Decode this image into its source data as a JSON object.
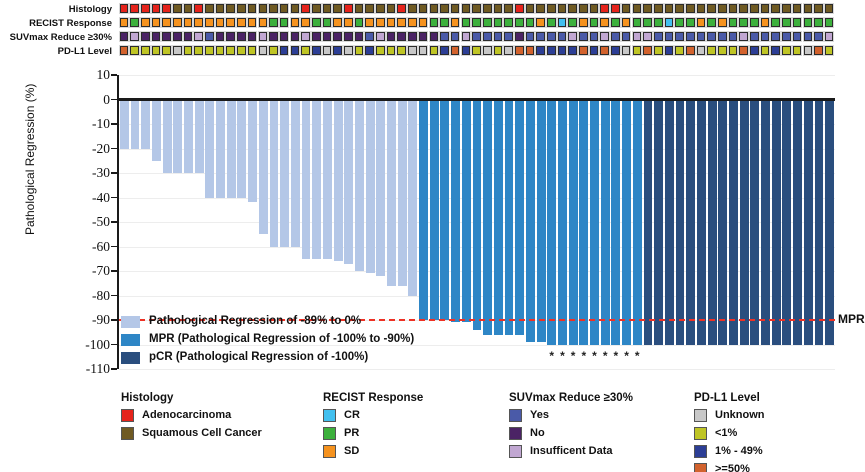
{
  "figure": {
    "mpr_reference_label": "MPR"
  },
  "tracks": {
    "rows": [
      {
        "label": "Histology",
        "codes": "AAAAASSASSSSSSSSSASSSASSSSASSSSSSSSSSASSSSSSSAASSSSSSSSSSSSSSSSSSSS",
        "palette": {
          "A": "#e5231b",
          "S": "#6f5a22"
        }
      },
      {
        "label": "RECIST Response",
        "codes": "SPSSSSSSSSSSSSPPSSPPSSPSSSSSSPPSPPPPPPPSPCPSPSPSPPPCPPSPSPPPSPPPPPP",
        "palette": {
          "C": "#42c0ef",
          "P": "#3cb03c",
          "S": "#f5921e"
        }
      },
      {
        "label": "SUVmax Reduce ≥30%",
        "codes": "NINNNNNIYNNNNINNNINNNNNYINNNNNYYIYYYYNYYYYIYYIYYIIYYYYYYYYIYYYYYYYI",
        "palette": {
          "Y": "#4a5aa8",
          "N": "#4b2365",
          "I": "#c1a7d2"
        }
      },
      {
        "label": "PD-L1 Level",
        "codes": "HLLLLULLLLLLLULMMLMUMULMLLLUULMHMLULUHHMMMMHMHMULHLMLHULLLHMLMLLUHL",
        "palette": {
          "U": "#c8c8c8",
          "L": "#bfc525",
          "M": "#2c3e95",
          "H": "#d2622d"
        }
      }
    ]
  },
  "chart_data": {
    "type": "bar",
    "title": "",
    "xlabel": "",
    "ylabel": "Pathological Regression (%)",
    "ylim": [
      -110,
      10
    ],
    "yticks": [
      10,
      0,
      -10,
      -20,
      -30,
      -40,
      -50,
      -60,
      -70,
      -80,
      -90,
      -100,
      -110
    ],
    "grid": "horizontal-light",
    "values": [
      -20,
      -20,
      -20,
      -25,
      -30,
      -30,
      -30,
      -30,
      -40,
      -40,
      -40,
      -40,
      -42,
      -55,
      -60,
      -60,
      -60,
      -65,
      -65,
      -65,
      -66,
      -67,
      -70,
      -71,
      -72,
      -76,
      -76,
      -80,
      -90,
      -90,
      -90,
      -91,
      -91,
      -94,
      -96,
      -96,
      -96,
      -96,
      -99,
      -99,
      -100,
      -100,
      -100,
      -100,
      -100,
      -100,
      -100,
      -100,
      -100,
      -100,
      -100,
      -100,
      -100,
      -100,
      -100,
      -100,
      -100,
      -100,
      -100,
      -100,
      -100,
      -100,
      -100,
      -100,
      -100,
      -100,
      -100
    ],
    "group_boundaries": {
      "light_last_bar": 28,
      "mpr_last_bar": 49
    },
    "group_colors": {
      "light": "#b4c7e7",
      "mpr": "#2e86c6",
      "pcr": "#2a4e7e"
    },
    "asterisk_bars": [
      41,
      42,
      43,
      44,
      45,
      46,
      47,
      48,
      49
    ],
    "asterisk_symbol": "*",
    "reference_line": {
      "y": -90,
      "label": "MPR",
      "color": "#ee3124",
      "style": "dashed"
    },
    "inner_legend": [
      {
        "key": "light",
        "label": "Pathological Regression of -89% to 0%"
      },
      {
        "key": "mpr",
        "label": "MPR (Pathological Regression of -100% to -90%)"
      },
      {
        "key": "pcr",
        "label": "pCR (Pathological Regression of -100%)"
      }
    ]
  },
  "legends": [
    {
      "title": "Histology",
      "items": [
        {
          "label": "Adenocarcinoma",
          "color": "#e5231b"
        },
        {
          "label": "Squamous Cell Cancer",
          "color": "#6f5a22"
        }
      ]
    },
    {
      "title": "RECIST Response",
      "items": [
        {
          "label": "CR",
          "color": "#42c0ef"
        },
        {
          "label": "PR",
          "color": "#3cb03c"
        },
        {
          "label": "SD",
          "color": "#f5921e"
        }
      ]
    },
    {
      "title": "SUVmax Reduce ≥30%",
      "items": [
        {
          "label": "Yes",
          "color": "#4a5aa8"
        },
        {
          "label": "No",
          "color": "#4b2365"
        },
        {
          "label": "Insufficent Data",
          "color": "#c1a7d2"
        }
      ]
    },
    {
      "title": "PD-L1 Level",
      "items": [
        {
          "label": "Unknown",
          "color": "#c8c8c8"
        },
        {
          "label": "<1%",
          "color": "#bfc525"
        },
        {
          "label": "1% - 49%",
          "color": "#2c3e95"
        },
        {
          "label": ">=50%",
          "color": "#d2622d"
        }
      ]
    }
  ]
}
